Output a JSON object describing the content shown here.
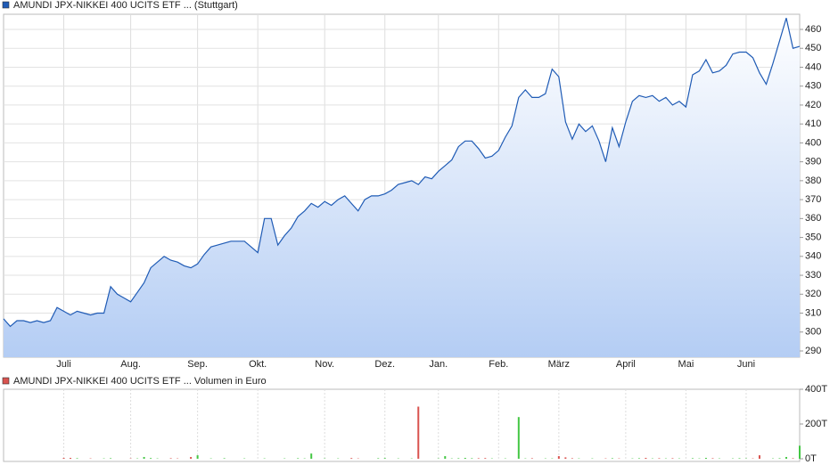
{
  "chart_data": [
    {
      "type": "line",
      "series": [
        {
          "name": "AMUNDI JPX-NIKKEI 400 UCITS ETF ... (Stuttgart)",
          "color": "#1f5bb5",
          "values": [
            307,
            303,
            306,
            306,
            305,
            306,
            305,
            306,
            313,
            311,
            309,
            311,
            310,
            309,
            310,
            310,
            324,
            320,
            318,
            316,
            321,
            326,
            334,
            337,
            340,
            338,
            337,
            335,
            334,
            336,
            341,
            345,
            346,
            347,
            348,
            348,
            348,
            345,
            342,
            360,
            360,
            346,
            351,
            355,
            361,
            364,
            368,
            366,
            369,
            367,
            370,
            372,
            368,
            364,
            370,
            372,
            372,
            373,
            375,
            378,
            379,
            380,
            378,
            382,
            381,
            385,
            388,
            391,
            398,
            401,
            401,
            397,
            392,
            393,
            396,
            403,
            409,
            424,
            428,
            424,
            424,
            426,
            439,
            435,
            411,
            402,
            410,
            406,
            409,
            401,
            390,
            408,
            398,
            411,
            422,
            425,
            424,
            425,
            422,
            424,
            420,
            422,
            419,
            436,
            438,
            444,
            437,
            438,
            441,
            447,
            448,
            448,
            445,
            437,
            431,
            442,
            454,
            466,
            450,
            451
          ]
        }
      ],
      "categories": [
        null,
        null,
        null,
        null,
        null,
        null,
        null,
        null,
        null,
        "Juli",
        null,
        null,
        null,
        null,
        null,
        null,
        null,
        null,
        null,
        "Aug.",
        null,
        null,
        null,
        null,
        null,
        null,
        null,
        null,
        null,
        "Sep.",
        null,
        null,
        null,
        null,
        null,
        null,
        null,
        null,
        "Okt.",
        null,
        null,
        null,
        null,
        null,
        null,
        null,
        null,
        null,
        "Nov.",
        null,
        null,
        null,
        null,
        null,
        null,
        null,
        null,
        "Dez.",
        null,
        null,
        null,
        null,
        null,
        null,
        null,
        "Jan.",
        null,
        null,
        null,
        null,
        null,
        null,
        null,
        null,
        "Feb.",
        null,
        null,
        null,
        null,
        null,
        null,
        null,
        null,
        "März",
        null,
        null,
        null,
        null,
        null,
        null,
        null,
        null,
        null,
        "April",
        null,
        null,
        null,
        null,
        null,
        null,
        null,
        null,
        "Mai",
        null,
        null,
        null,
        null,
        null,
        null,
        null,
        null,
        "Juni",
        null,
        null,
        null,
        null,
        null,
        null,
        null,
        null
      ],
      "ylim": [
        286.7,
        468
      ],
      "yticks": [
        290,
        300,
        310,
        320,
        330,
        340,
        350,
        360,
        370,
        380,
        390,
        400,
        410,
        420,
        430,
        440,
        450,
        460
      ],
      "grid": true,
      "area": true
    },
    {
      "type": "bar",
      "series": [
        {
          "name": "AMUNDI JPX-NIKKEI 400 UCITS ETF ... Volumen in Euro",
          "color": "#d9534f",
          "values": [
            0,
            0,
            0,
            0,
            0,
            0,
            0,
            0,
            0,
            5,
            5,
            3,
            0,
            2,
            0,
            2,
            3,
            0,
            0,
            2,
            2,
            10,
            4,
            2,
            0,
            3,
            2,
            0,
            10,
            20,
            0,
            2,
            0,
            3,
            0,
            0,
            2,
            0,
            0,
            2,
            0,
            0,
            2,
            0,
            3,
            2,
            30,
            0,
            2,
            0,
            2,
            0,
            4,
            2,
            0,
            0,
            3,
            4,
            0,
            2,
            0,
            2,
            300,
            0,
            0,
            2,
            15,
            2,
            3,
            5,
            3,
            3,
            4,
            2,
            0,
            2,
            0,
            240,
            2,
            3,
            0,
            2,
            2,
            15,
            8,
            3,
            2,
            0,
            2,
            0,
            2,
            3,
            2,
            0,
            2,
            3,
            5,
            2,
            3,
            2,
            3,
            2,
            0,
            3,
            2,
            5,
            3,
            2,
            0,
            2,
            3,
            2,
            2,
            20,
            0,
            2,
            3,
            10,
            3,
            75
          ]
        }
      ],
      "color_up": "#44c744",
      "color_down": "#d9534f",
      "ylim": [
        0,
        400
      ],
      "yticks": [
        {
          "value": 0,
          "label": "0T"
        },
        {
          "value": 200,
          "label": "200T"
        },
        {
          "value": 400,
          "label": "400T"
        }
      ]
    }
  ]
}
